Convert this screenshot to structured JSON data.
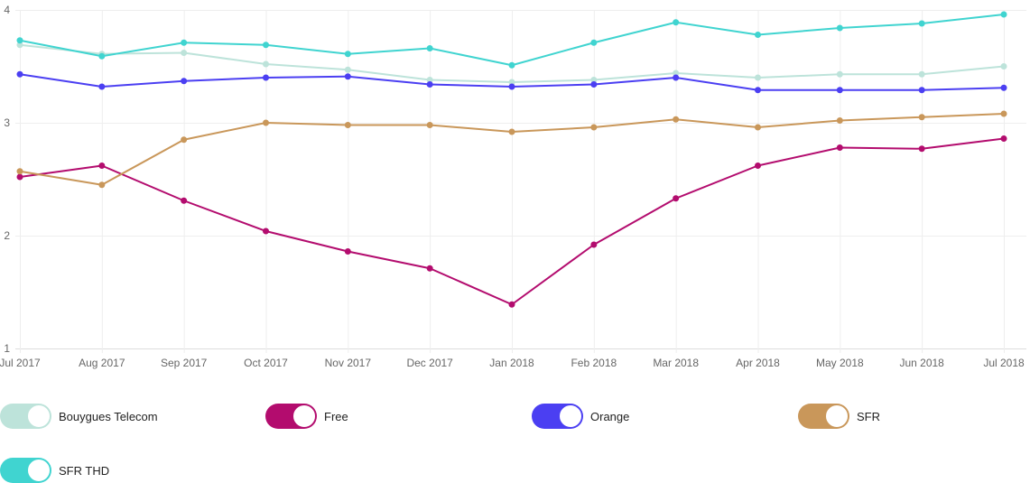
{
  "chart_data": {
    "type": "line",
    "title": "",
    "xlabel": "",
    "ylabel": "",
    "ylim": [
      1,
      4
    ],
    "y_ticks": [
      "1",
      "2",
      "3",
      "4"
    ],
    "grid": true,
    "legend_placement": "bottom",
    "categories": [
      "Jul 2017",
      "Aug 2017",
      "Sep 2017",
      "Oct 2017",
      "Nov 2017",
      "Dec 2017",
      "Jan 2018",
      "Feb 2018",
      "Mar 2018",
      "Apr 2018",
      "May 2018",
      "Jun 2018",
      "Jul 2018"
    ],
    "series": [
      {
        "name": "Bouygues Telecom",
        "color": "#bde3da",
        "enabled": true,
        "values": [
          3.69,
          3.61,
          3.62,
          3.52,
          3.47,
          3.38,
          3.36,
          3.38,
          3.44,
          3.4,
          3.43,
          3.43,
          3.5
        ]
      },
      {
        "name": "Free",
        "color": "#b30c6e",
        "enabled": true,
        "values": [
          2.52,
          2.62,
          2.31,
          2.04,
          1.86,
          1.71,
          1.39,
          1.92,
          2.33,
          2.62,
          2.78,
          2.77,
          2.86
        ]
      },
      {
        "name": "Orange",
        "color": "#4b3ff2",
        "enabled": true,
        "values": [
          3.43,
          3.32,
          3.37,
          3.4,
          3.41,
          3.34,
          3.32,
          3.34,
          3.4,
          3.29,
          3.29,
          3.29,
          3.31
        ]
      },
      {
        "name": "SFR",
        "color": "#c9975a",
        "enabled": true,
        "values": [
          2.57,
          2.45,
          2.85,
          3.0,
          2.98,
          2.98,
          2.92,
          2.96,
          3.03,
          2.96,
          3.02,
          3.05,
          3.08
        ]
      },
      {
        "name": "SFR THD",
        "color": "#40d4d0",
        "enabled": true,
        "values": [
          3.73,
          3.59,
          3.71,
          3.69,
          3.61,
          3.66,
          3.51,
          3.71,
          3.89,
          3.78,
          3.84,
          3.88,
          3.96
        ]
      }
    ]
  }
}
